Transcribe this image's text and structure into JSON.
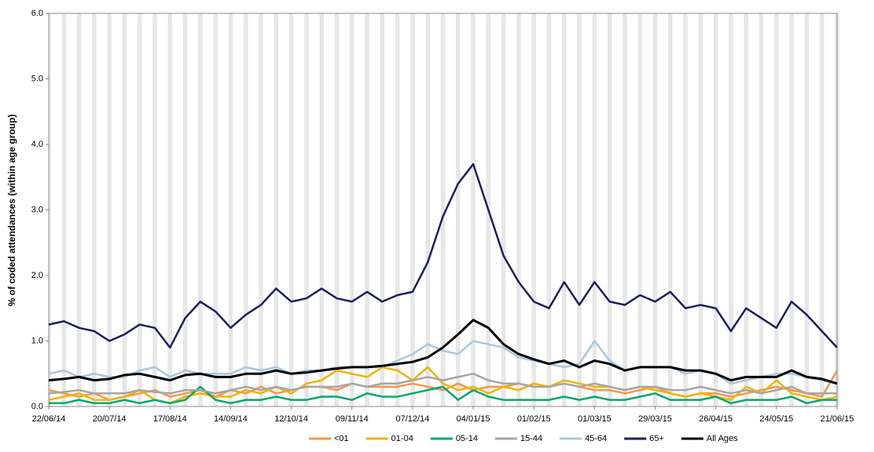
{
  "chart_data": {
    "type": "line",
    "y_label": "% of coded attendances (within age group)",
    "x": [
      "22/06/14",
      "29/06/14",
      "06/07/14",
      "13/07/14",
      "20/07/14",
      "27/07/14",
      "03/08/14",
      "10/08/14",
      "17/08/14",
      "24/08/14",
      "31/08/14",
      "07/09/14",
      "14/09/14",
      "21/09/14",
      "28/09/14",
      "05/10/14",
      "12/10/14",
      "19/10/14",
      "26/10/14",
      "02/11/14",
      "09/11/14",
      "16/11/14",
      "23/11/14",
      "30/11/14",
      "07/12/14",
      "14/12/14",
      "21/12/14",
      "28/12/14",
      "04/01/15",
      "11/01/15",
      "18/01/15",
      "25/01/15",
      "01/02/15",
      "08/02/15",
      "15/02/15",
      "22/02/15",
      "01/03/15",
      "08/03/15",
      "15/03/15",
      "22/03/15",
      "29/03/15",
      "05/04/15",
      "12/04/15",
      "19/04/15",
      "26/04/15",
      "03/05/15",
      "10/05/15",
      "17/05/15",
      "24/05/15",
      "31/05/15",
      "07/06/15",
      "14/06/15",
      "21/06/15"
    ],
    "xlim": [
      "22/06/14",
      "21/06/15"
    ],
    "xticks": [
      "22/06/14",
      "20/07/14",
      "17/08/14",
      "14/09/14",
      "12/10/14",
      "09/11/14",
      "07/12/14",
      "04/01/15",
      "01/02/15",
      "01/03/15",
      "29/03/15",
      "26/04/15",
      "24/05/15",
      "21/06/15"
    ],
    "ylim": [
      0,
      6
    ],
    "yticks": [
      {
        "value": 0,
        "label": "0.0"
      },
      {
        "value": 1,
        "label": "1.0"
      },
      {
        "value": 2,
        "label": "2.0"
      },
      {
        "value": 3,
        "label": "3.0"
      },
      {
        "value": 4,
        "label": "4.0"
      },
      {
        "value": 5,
        "label": "5.0"
      },
      {
        "value": 6,
        "label": "6.0"
      }
    ],
    "series": [
      {
        "name": "<01",
        "color": "#f79646",
        "values": [
          0.25,
          0.2,
          0.15,
          0.2,
          0.1,
          0.15,
          0.2,
          0.25,
          0.15,
          0.2,
          0.25,
          0.15,
          0.25,
          0.2,
          0.3,
          0.2,
          0.25,
          0.3,
          0.3,
          0.25,
          0.35,
          0.3,
          0.3,
          0.3,
          0.35,
          0.3,
          0.25,
          0.35,
          0.25,
          0.3,
          0.3,
          0.35,
          0.3,
          0.3,
          0.35,
          0.3,
          0.25,
          0.25,
          0.2,
          0.25,
          0.3,
          0.2,
          0.15,
          0.2,
          0.2,
          0.15,
          0.2,
          0.25,
          0.3,
          0.25,
          0.2,
          0.15,
          0.55
        ]
      },
      {
        "name": "01-04",
        "color": "#f0b400",
        "values": [
          0.1,
          0.15,
          0.2,
          0.1,
          0.1,
          0.15,
          0.25,
          0.1,
          0.05,
          0.15,
          0.2,
          0.15,
          0.15,
          0.25,
          0.2,
          0.3,
          0.2,
          0.35,
          0.4,
          0.55,
          0.5,
          0.45,
          0.6,
          0.55,
          0.4,
          0.6,
          0.35,
          0.25,
          0.3,
          0.2,
          0.3,
          0.25,
          0.35,
          0.3,
          0.4,
          0.35,
          0.3,
          0.3,
          0.25,
          0.3,
          0.25,
          0.2,
          0.15,
          0.2,
          0.15,
          0.1,
          0.3,
          0.2,
          0.4,
          0.2,
          0.15,
          0.1,
          0.15
        ]
      },
      {
        "name": "05-14",
        "color": "#00a86b",
        "values": [
          0.05,
          0.05,
          0.1,
          0.05,
          0.05,
          0.1,
          0.05,
          0.1,
          0.05,
          0.1,
          0.3,
          0.1,
          0.05,
          0.1,
          0.1,
          0.15,
          0.1,
          0.1,
          0.15,
          0.15,
          0.1,
          0.2,
          0.15,
          0.15,
          0.2,
          0.25,
          0.3,
          0.1,
          0.25,
          0.15,
          0.1,
          0.1,
          0.1,
          0.1,
          0.15,
          0.1,
          0.15,
          0.1,
          0.1,
          0.15,
          0.2,
          0.1,
          0.1,
          0.1,
          0.15,
          0.05,
          0.1,
          0.1,
          0.1,
          0.15,
          0.05,
          0.1,
          0.1
        ]
      },
      {
        "name": "15-44",
        "color": "#a6a6a6",
        "values": [
          0.2,
          0.22,
          0.25,
          0.2,
          0.2,
          0.2,
          0.25,
          0.22,
          0.2,
          0.25,
          0.25,
          0.2,
          0.25,
          0.3,
          0.25,
          0.3,
          0.25,
          0.3,
          0.3,
          0.3,
          0.35,
          0.3,
          0.35,
          0.35,
          0.4,
          0.45,
          0.4,
          0.45,
          0.5,
          0.4,
          0.35,
          0.35,
          0.3,
          0.3,
          0.35,
          0.3,
          0.35,
          0.3,
          0.25,
          0.3,
          0.3,
          0.25,
          0.25,
          0.3,
          0.25,
          0.2,
          0.25,
          0.2,
          0.25,
          0.3,
          0.2,
          0.2,
          0.2
        ]
      },
      {
        "name": "45-64",
        "color": "#a5c8e0",
        "values": [
          0.5,
          0.55,
          0.45,
          0.5,
          0.45,
          0.45,
          0.55,
          0.6,
          0.45,
          0.55,
          0.5,
          0.5,
          0.5,
          0.6,
          0.55,
          0.6,
          0.5,
          0.55,
          0.55,
          0.6,
          0.6,
          0.6,
          0.6,
          0.7,
          0.8,
          0.95,
          0.85,
          0.8,
          1.0,
          0.95,
          0.9,
          0.75,
          0.7,
          0.65,
          0.6,
          0.65,
          1.0,
          0.7,
          0.55,
          0.6,
          0.6,
          0.6,
          0.5,
          0.55,
          0.5,
          0.35,
          0.4,
          0.45,
          0.5,
          0.5,
          0.45,
          0.4,
          0.35
        ]
      },
      {
        "name": "65+",
        "color": "#1a1f5e",
        "values": [
          1.25,
          1.3,
          1.2,
          1.15,
          1.0,
          1.1,
          1.25,
          1.2,
          0.9,
          1.35,
          1.6,
          1.45,
          1.2,
          1.4,
          1.55,
          1.8,
          1.6,
          1.65,
          1.8,
          1.65,
          1.6,
          1.75,
          1.6,
          1.7,
          1.75,
          2.2,
          2.9,
          3.4,
          3.7,
          3.0,
          2.3,
          1.9,
          1.6,
          1.5,
          1.9,
          1.55,
          1.9,
          1.6,
          1.55,
          1.7,
          1.6,
          1.75,
          1.5,
          1.55,
          1.5,
          1.15,
          1.5,
          1.35,
          1.2,
          1.6,
          1.4,
          1.15,
          0.9
        ]
      },
      {
        "name": "All Ages",
        "color": "#000000",
        "values": [
          0.4,
          0.42,
          0.45,
          0.4,
          0.42,
          0.48,
          0.5,
          0.45,
          0.4,
          0.48,
          0.5,
          0.45,
          0.45,
          0.5,
          0.5,
          0.55,
          0.5,
          0.52,
          0.55,
          0.58,
          0.6,
          0.6,
          0.62,
          0.65,
          0.68,
          0.75,
          0.9,
          1.1,
          1.32,
          1.2,
          0.95,
          0.8,
          0.72,
          0.65,
          0.7,
          0.6,
          0.7,
          0.65,
          0.55,
          0.6,
          0.6,
          0.6,
          0.55,
          0.55,
          0.5,
          0.4,
          0.45,
          0.45,
          0.45,
          0.55,
          0.45,
          0.42,
          0.35
        ]
      }
    ]
  }
}
